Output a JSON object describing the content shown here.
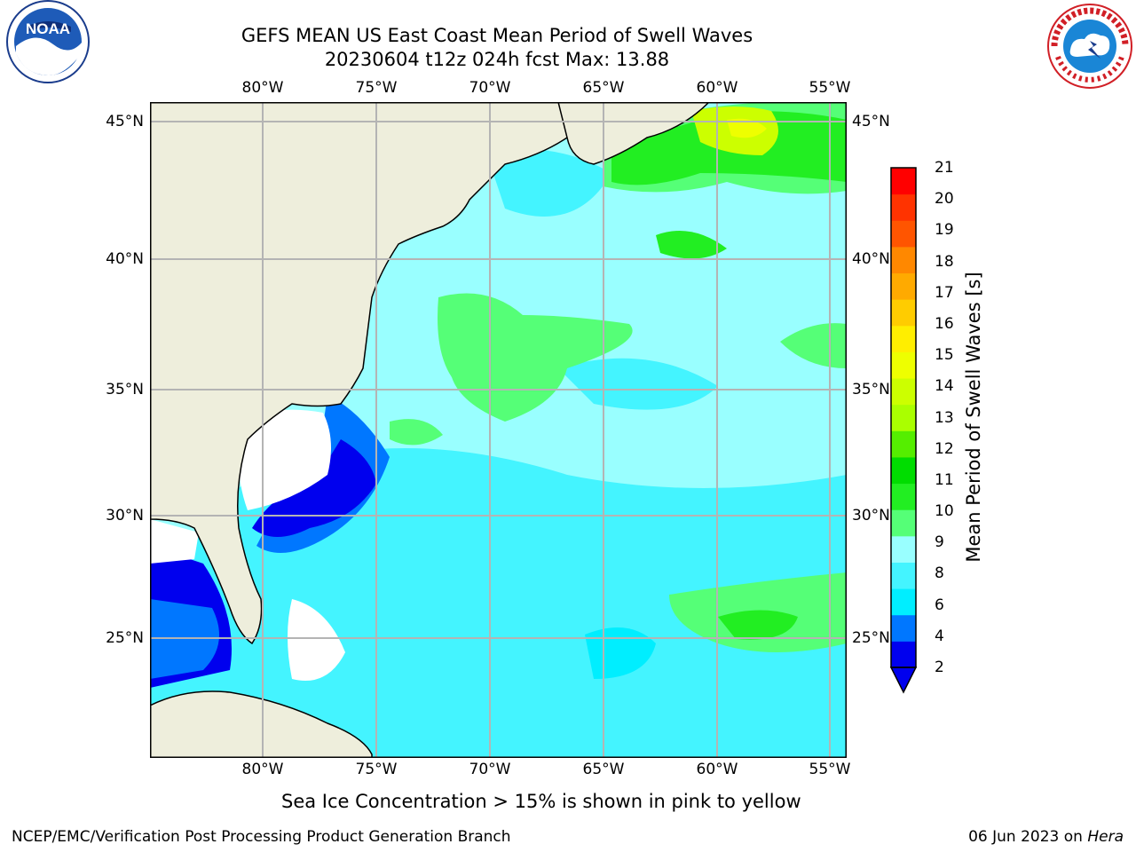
{
  "title": {
    "line1": "GEFS MEAN US East Coast Mean Period of Swell Waves",
    "line2": "20230604 t12z 024h fcst   Max: 13.88"
  },
  "logos": {
    "left": "noaa-logo",
    "left_text": "NOAA",
    "right": "nws-logo"
  },
  "map": {
    "lon_ticks": [
      "80°W",
      "75°W",
      "70°W",
      "65°W",
      "60°W",
      "55°W"
    ],
    "lat_ticks": [
      "45°N",
      "40°N",
      "35°N",
      "30°N",
      "25°N"
    ],
    "colors": {
      "land": "#eeeedc",
      "grid": "#b4b4b4",
      "coast": "#000000",
      "missing": "#ffffff"
    }
  },
  "colorbar": {
    "title": "Mean Period of Swell Waves [s]",
    "labels": [
      "21",
      "20",
      "19",
      "18",
      "17",
      "16",
      "15",
      "14",
      "13",
      "12",
      "11",
      "10",
      "9",
      "8",
      "6",
      "4",
      "2"
    ],
    "colors": [
      "#0000ee",
      "#0077ff",
      "#00eeff",
      "#44f4ff",
      "#99ffff",
      "#55ff77",
      "#22ee22",
      "#00dd00",
      "#55ee00",
      "#aaff00",
      "#ccff00",
      "#eeff00",
      "#ffee00",
      "#ffcc00",
      "#ffaa00",
      "#ff8800",
      "#ff5500",
      "#ff3300",
      "#ff0000"
    ]
  },
  "note": "Sea Ice Concentration > 15% is shown in pink to yellow",
  "footer": {
    "left": "NCEP/EMC/Verification Post Processing Product Generation Branch",
    "date": "06 Jun 2023 on ",
    "host": "Hera"
  }
}
